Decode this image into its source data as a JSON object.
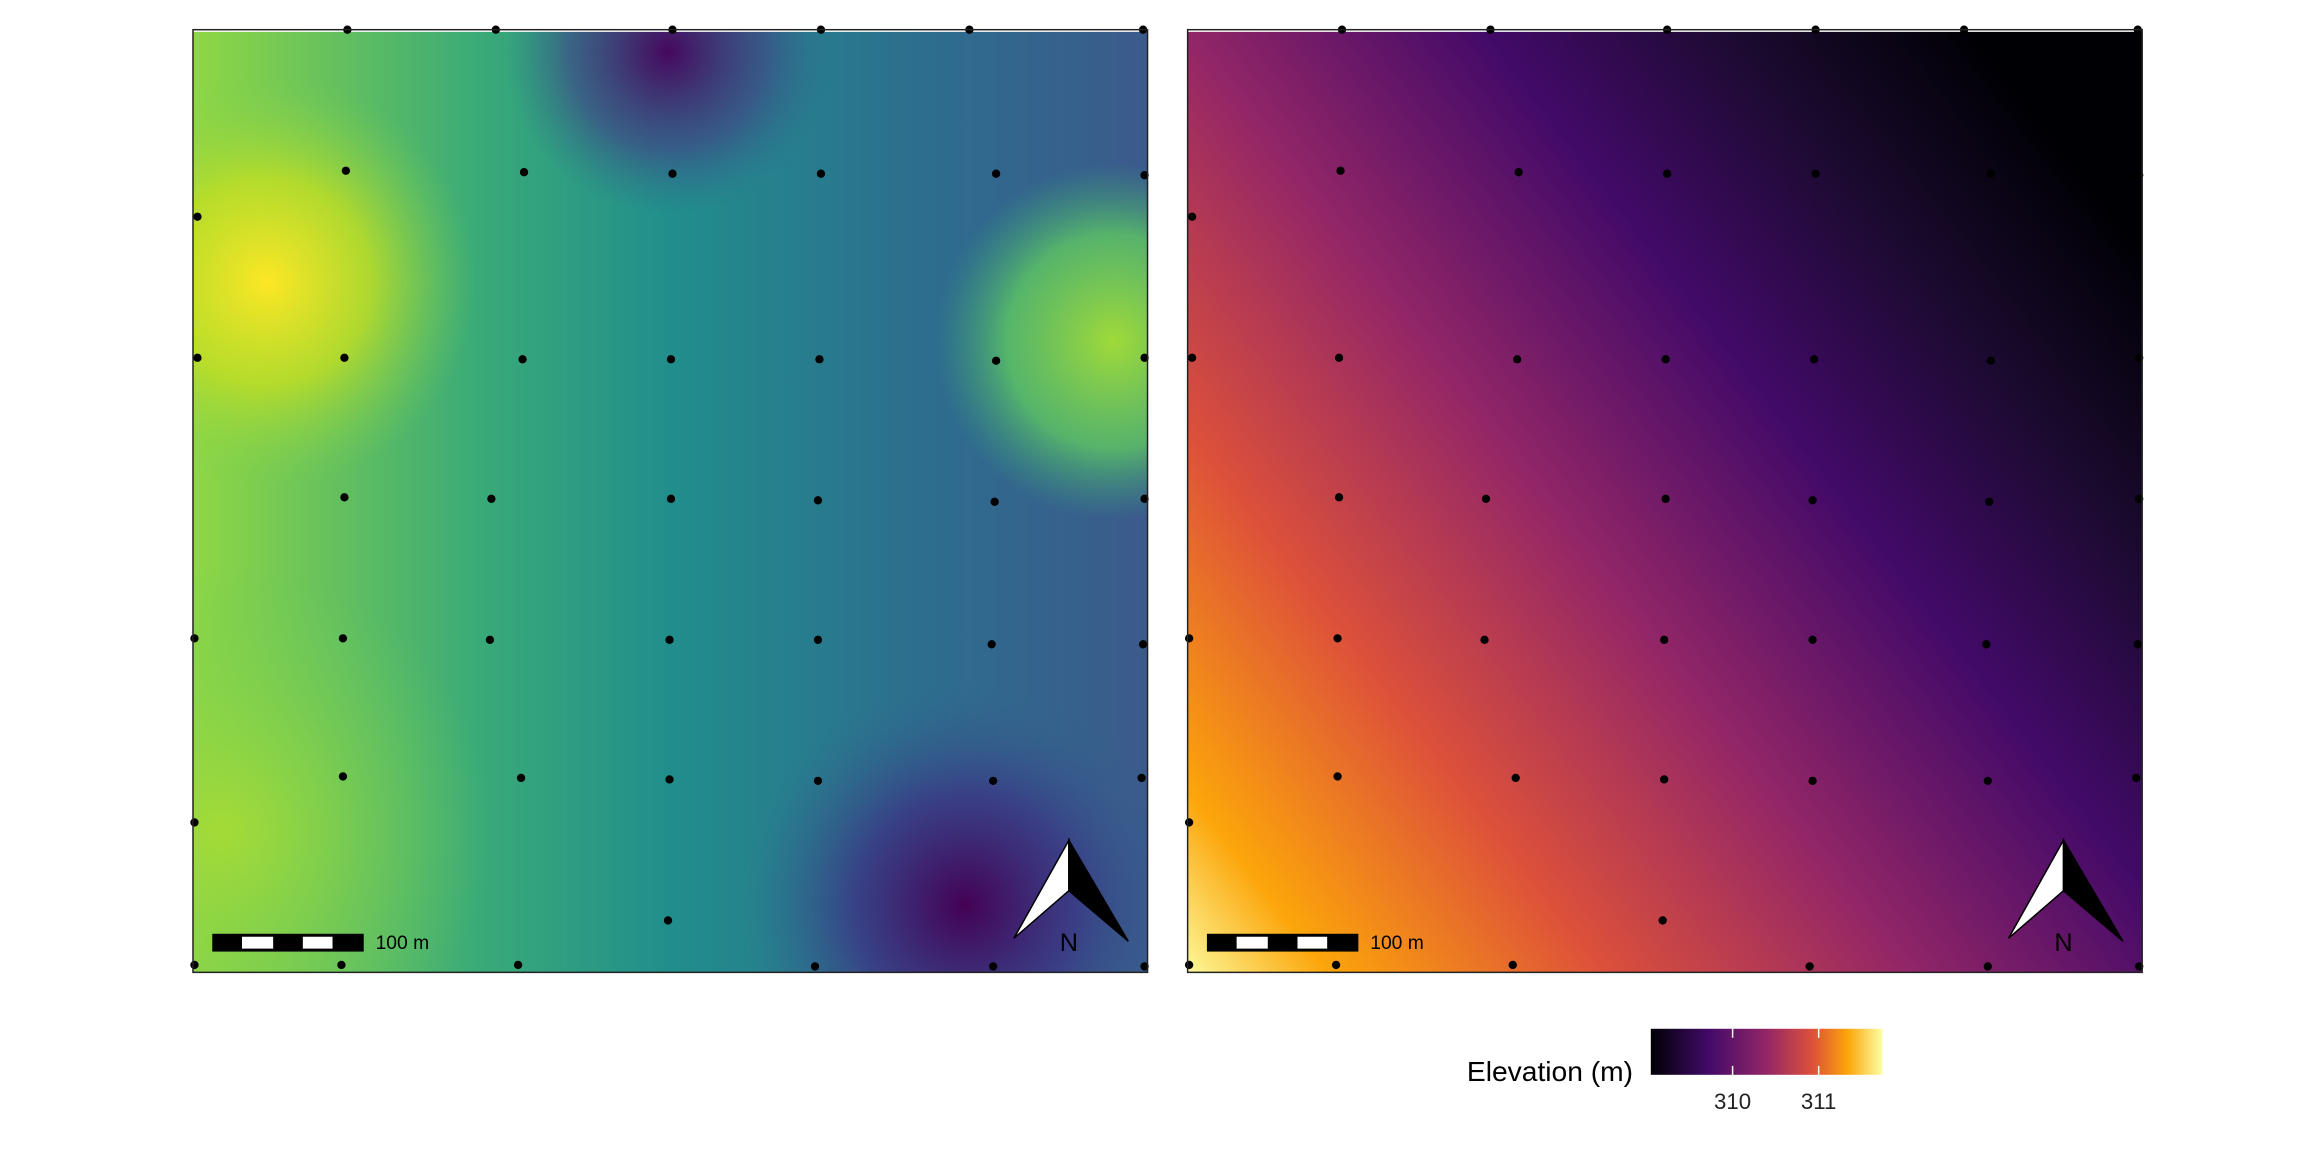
{
  "maps": [
    {
      "scale_bar": "100 m",
      "north": "N"
    },
    {
      "scale_bar": "100 m",
      "north": "N"
    }
  ],
  "legend": {
    "title": "Elevation (m)",
    "range": [
      309.05,
      311.74
    ],
    "ticks": [
      310,
      311
    ]
  }
}
